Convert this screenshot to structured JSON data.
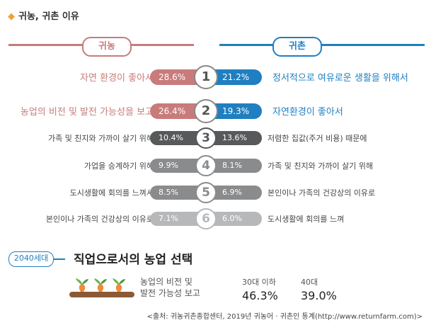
{
  "heading": "귀농, 귀촌 이유",
  "left_header": "귀농",
  "right_header": "귀촌",
  "colors": {
    "left": "#c97b7b",
    "right": "#1f7fc0",
    "dark": "#58595b",
    "mid": "#8a8b8d",
    "light": "#b7b8ba"
  },
  "chart_data": {
    "type": "bar",
    "series": [
      {
        "name": "귀농",
        "values": [
          28.6,
          26.4,
          10.4,
          9.9,
          8.5,
          7.1
        ],
        "labels": [
          "자연 환경이 좋아서",
          "농업의 비전 및 발전 가능성을 보고",
          "가족 및 친지와 가까이 살기 위해",
          "가업을 승계하기 위해",
          "도시생활에 회의를 느껴서",
          "본인이나 가족의 건강상의 이유로"
        ]
      },
      {
        "name": "귀촌",
        "values": [
          21.2,
          19.3,
          13.6,
          8.1,
          6.9,
          6.0
        ],
        "labels": [
          "정서적으로 여유로운 생활을 위해서",
          "자연환경이 좋아서",
          "저렴한 집값(주거 비용) 때문에",
          "가족 및 친지와 가까이 살기 위해",
          "본인이나 가족의 건강상의 이유로",
          "도시생활에 회의를 느껴"
        ]
      }
    ],
    "ranks": [
      "1",
      "2",
      "3",
      "4",
      "5",
      "6"
    ],
    "left_text": [
      "28.6%",
      "26.4%",
      "10.4%",
      "9.9%",
      "8.5%",
      "7.1%"
    ],
    "right_text": [
      "21.2%",
      "19.3%",
      "13.6%",
      "8.1%",
      "6.9%",
      "6.0%"
    ]
  },
  "section2": {
    "badge": "2040세대",
    "title": "직업으로서의 농업 선택",
    "label_line1": "농업의 비전 및",
    "label_line2": "발전 가능성 보고",
    "groups": [
      {
        "age": "30대 이하",
        "value": "46.3%"
      },
      {
        "age": "40대",
        "value": "39.0%"
      }
    ]
  },
  "source": "<출처: 귀농귀촌종합센터, 2019년 귀농어 · 귀촌인 통계(http://www.returnfarm.com)>"
}
